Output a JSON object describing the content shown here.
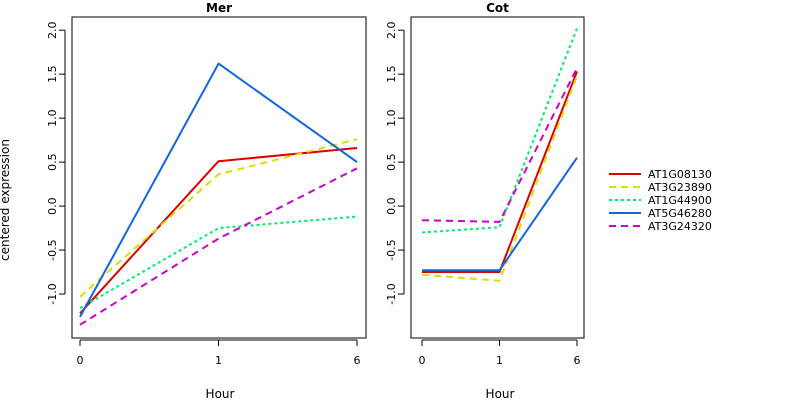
{
  "chart_data": {
    "type": "line",
    "ylabel": "centered expression",
    "xlabel": "Hour",
    "legend_position": "right",
    "grid": false,
    "legend": [
      {
        "name": "AT1G08130",
        "color": "#dd0000",
        "dash": "solid"
      },
      {
        "name": "AT3G23890",
        "color": "#dddd00",
        "dash": "dashed"
      },
      {
        "name": "AT1G44900",
        "color": "#00ee66",
        "dash": "dotted"
      },
      {
        "name": "AT5G46280",
        "color": "#1166dd",
        "dash": "solid"
      },
      {
        "name": "AT3G24320",
        "color": "#cc00cc",
        "dash": "dashed"
      }
    ],
    "panels": [
      {
        "title": "Mer",
        "x": [
          "0",
          "1",
          "6"
        ],
        "ylim": [
          -1.5,
          2.15
        ],
        "yticks": [
          "-1.0",
          "-0.5",
          "0.0",
          "0.5",
          "1.0",
          "1.5",
          "2.0"
        ],
        "series": [
          {
            "name": "AT1G08130",
            "values": [
              -1.22,
              0.51,
              0.66
            ]
          },
          {
            "name": "AT3G23890",
            "values": [
              -1.03,
              0.36,
              0.76
            ]
          },
          {
            "name": "AT1G44900",
            "values": [
              -1.16,
              -0.25,
              -0.12
            ]
          },
          {
            "name": "AT5G46280",
            "values": [
              -1.26,
              1.62,
              0.5
            ]
          },
          {
            "name": "AT3G24320",
            "values": [
              -1.35,
              -0.37,
              0.43
            ]
          }
        ]
      },
      {
        "title": "Cot",
        "x": [
          "0",
          "1",
          "6"
        ],
        "ylim": [
          -1.5,
          2.15
        ],
        "yticks": [
          "-1.0",
          "-0.5",
          "0.0",
          "0.5",
          "1.0",
          "1.5",
          "2.0"
        ],
        "series": [
          {
            "name": "AT1G08130",
            "values": [
              -0.75,
              -0.75,
              1.53
            ]
          },
          {
            "name": "AT3G23890",
            "values": [
              -0.78,
              -0.85,
              1.48
            ]
          },
          {
            "name": "AT1G44900",
            "values": [
              -0.3,
              -0.24,
              2.02
            ]
          },
          {
            "name": "AT5G46280",
            "values": [
              -0.73,
              -0.73,
              0.55
            ]
          },
          {
            "name": "AT3G24320",
            "values": [
              -0.16,
              -0.18,
              1.57
            ]
          }
        ]
      }
    ]
  }
}
